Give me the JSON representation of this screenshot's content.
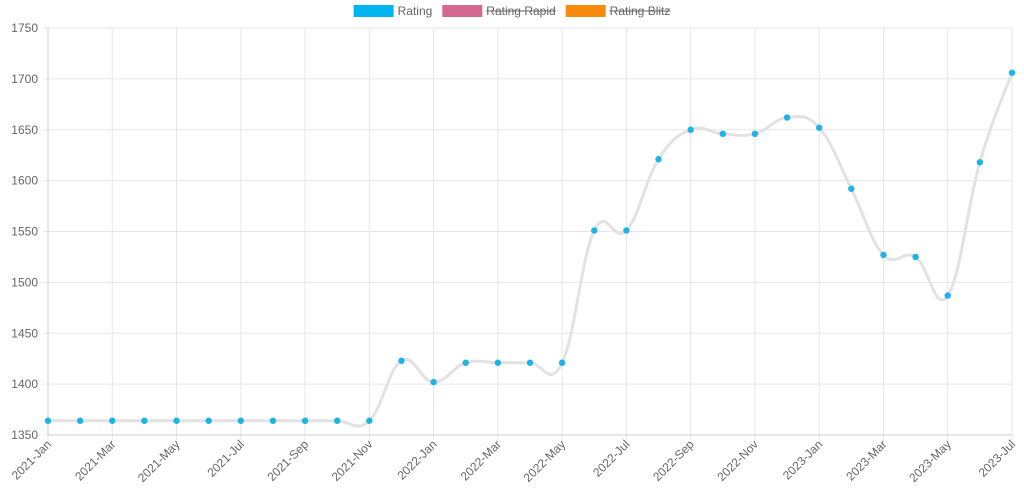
{
  "chart_data": {
    "type": "line",
    "title": "",
    "xlabel": "",
    "ylabel": "",
    "ylim": [
      1350,
      1750
    ],
    "yticks": [
      1350,
      1400,
      1450,
      1500,
      1550,
      1600,
      1650,
      1700,
      1750
    ],
    "grid": true,
    "legend_position": "top-center",
    "legend": [
      {
        "label": "Rating",
        "color": "#00b5f0",
        "hidden": false
      },
      {
        "label": "Rating Rapid",
        "color": "#d4688f",
        "hidden": true
      },
      {
        "label": "Rating Blitz",
        "color": "#f88b0b",
        "hidden": true
      }
    ],
    "x_tick_labels": [
      "2021-Jan",
      "2021-Mar",
      "2021-May",
      "2021-Jul",
      "2021-Sep",
      "2021-Nov",
      "2022-Jan",
      "2022-Mar",
      "2022-May",
      "2022-Jul",
      "2022-Sep",
      "2022-Nov",
      "2023-Jan",
      "2023-Mar",
      "2023-May",
      "2023-Jul"
    ],
    "categories": [
      "2021-Jan",
      "2021-Feb",
      "2021-Mar",
      "2021-Apr",
      "2021-May",
      "2021-Jun",
      "2021-Jul",
      "2021-Aug",
      "2021-Sep",
      "2021-Oct",
      "2021-Nov",
      "2021-Dec",
      "2022-Jan",
      "2022-Feb",
      "2022-Mar",
      "2022-Apr",
      "2022-May",
      "2022-Jun",
      "2022-Jul",
      "2022-Aug",
      "2022-Sep",
      "2022-Oct",
      "2022-Nov",
      "2022-Dec",
      "2023-Jan",
      "2023-Feb",
      "2023-Mar",
      "2023-Apr",
      "2023-May",
      "2023-Jun",
      "2023-Jul"
    ],
    "series": [
      {
        "name": "Rating",
        "line_color": "#e2e2e2",
        "point_color": "#1ab4e8",
        "values": [
          1364,
          1364,
          1364,
          1364,
          1364,
          1364,
          1364,
          1364,
          1364,
          1364,
          1364,
          1423,
          1402,
          1421,
          1421,
          1421,
          1421,
          1551,
          1551,
          1621,
          1650,
          1646,
          1646,
          1662,
          1652,
          1592,
          1527,
          1525,
          1487,
          1618,
          1706
        ]
      }
    ]
  }
}
